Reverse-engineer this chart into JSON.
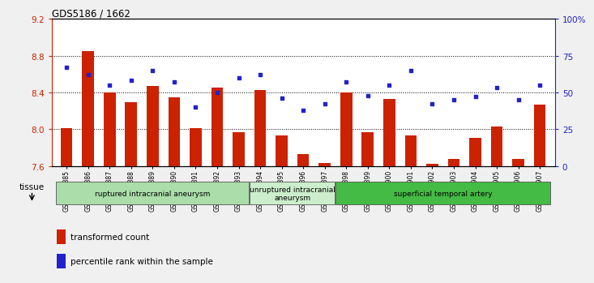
{
  "title": "GDS5186 / 1662",
  "samples": [
    "GSM1306885",
    "GSM1306886",
    "GSM1306887",
    "GSM1306888",
    "GSM1306889",
    "GSM1306890",
    "GSM1306891",
    "GSM1306892",
    "GSM1306893",
    "GSM1306894",
    "GSM1306895",
    "GSM1306896",
    "GSM1306897",
    "GSM1306898",
    "GSM1306899",
    "GSM1306900",
    "GSM1306901",
    "GSM1306902",
    "GSM1306903",
    "GSM1306904",
    "GSM1306905",
    "GSM1306906",
    "GSM1306907"
  ],
  "bar_values": [
    8.01,
    8.85,
    8.4,
    8.29,
    8.47,
    8.35,
    8.01,
    8.45,
    7.97,
    8.43,
    7.93,
    7.73,
    7.63,
    8.4,
    7.97,
    8.33,
    7.93,
    7.62,
    7.68,
    7.91,
    8.03,
    7.68,
    8.27
  ],
  "dot_values_pct": [
    67,
    62,
    55,
    58,
    65,
    57,
    40,
    50,
    60,
    62,
    46,
    38,
    42,
    57,
    48,
    55,
    65,
    42,
    45,
    47,
    53,
    45,
    55
  ],
  "ylim_left": [
    7.6,
    9.2
  ],
  "ylim_right": [
    0,
    100
  ],
  "yticks_left": [
    7.6,
    8.0,
    8.4,
    8.8,
    9.2
  ],
  "yticks_right": [
    0,
    25,
    50,
    75,
    100
  ],
  "ytick_labels_right": [
    "0",
    "25",
    "50",
    "75",
    "100%"
  ],
  "bar_color": "#cc2200",
  "dot_color": "#2222cc",
  "groups": [
    {
      "label": "ruptured intracranial aneurysm",
      "start": 0,
      "end": 8,
      "color": "#aaddaa"
    },
    {
      "label": "unruptured intracranial\naneurysm",
      "start": 9,
      "end": 12,
      "color": "#cceecc"
    },
    {
      "label": "superficial temporal artery",
      "start": 13,
      "end": 22,
      "color": "#44bb44"
    }
  ],
  "tissue_label": "tissue",
  "legend_bar_label": "transformed count",
  "legend_dot_label": "percentile rank within the sample",
  "fig_bg_color": "#f0f0f0",
  "plot_bg_color": "#ffffff",
  "dotted_lines": [
    8.0,
    8.4,
    8.8
  ]
}
